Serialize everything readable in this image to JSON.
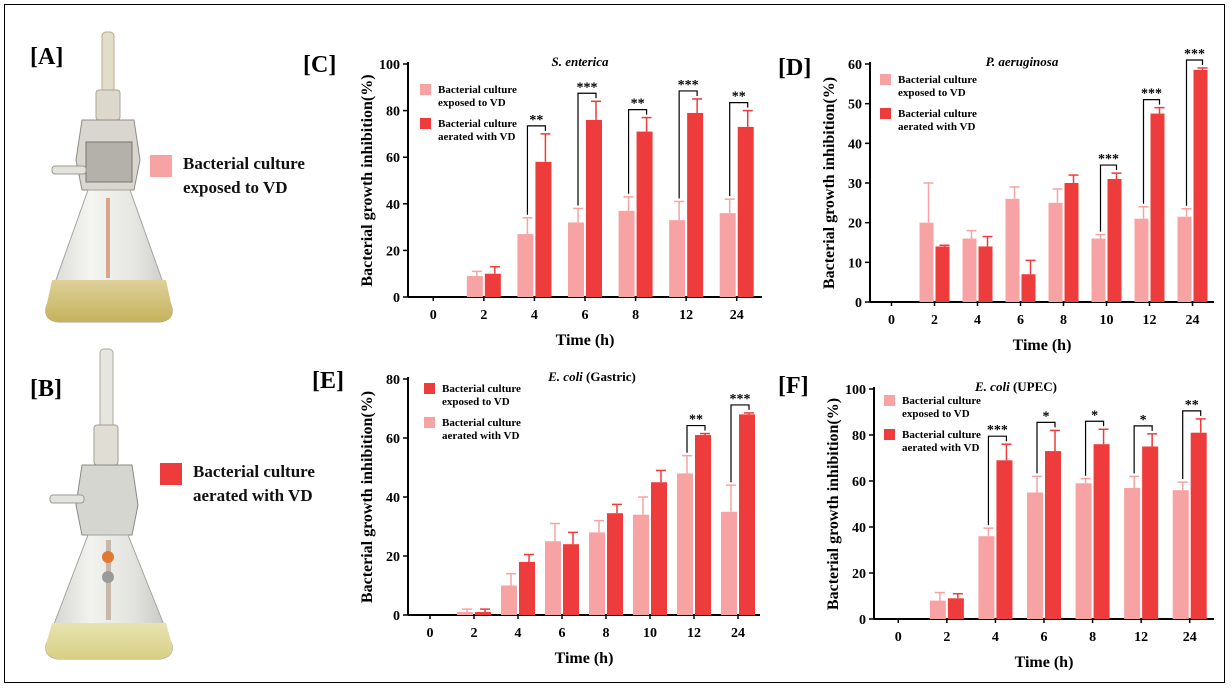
{
  "colors": {
    "light": "#f7a3a3",
    "dark": "#ee3b3b",
    "frame": "#000000"
  },
  "panel_labels": {
    "a": "[A]",
    "b": "[B]",
    "c": "[C]",
    "d": "[D]",
    "e": "[E]",
    "f": "[F]"
  },
  "photo_legend": {
    "a_text": "Bacterial culture\nexposed to VD",
    "b_text": "Bacterial culture\naerated with VD"
  },
  "chart_data": [
    {
      "type": "bar",
      "panel": "C",
      "title": "S. enterica",
      "xlabel": "Time (h)",
      "ylabel": "Bacterial growth  inhibition(%)",
      "ylim": [
        0,
        100
      ],
      "yticks": [
        0,
        20,
        40,
        60,
        80,
        100
      ],
      "categories": [
        "0",
        "2",
        "4",
        "6",
        "8",
        "12",
        "24"
      ],
      "legend_position": "top-left",
      "series": [
        {
          "name": "Bacterial culture exposed to VD",
          "color_key": "light",
          "values": [
            0,
            9,
            27,
            32,
            37,
            33,
            36
          ],
          "errors": [
            0,
            2,
            7,
            6,
            6,
            8,
            6
          ]
        },
        {
          "name": "Bacterial culture aerated with VD",
          "color_key": "dark",
          "values": [
            0,
            10,
            58,
            76,
            71,
            79,
            73
          ],
          "errors": [
            0,
            3,
            12,
            8,
            6,
            6,
            7
          ]
        }
      ],
      "significance": [
        "",
        "",
        "**",
        "***",
        "**",
        "***",
        "**"
      ]
    },
    {
      "type": "bar",
      "panel": "D",
      "title": "P. aeruginosa",
      "xlabel": "Time (h)",
      "ylabel": "Bacterial growth  inhibition(%)",
      "ylim": [
        0,
        60
      ],
      "yticks": [
        0,
        10,
        20,
        30,
        40,
        50,
        60
      ],
      "categories": [
        "0",
        "2",
        "4",
        "6",
        "8",
        "10",
        "12",
        "24"
      ],
      "legend_position": "top-left",
      "series": [
        {
          "name": "Bacterial culture exposed to VD",
          "color_key": "light",
          "values": [
            0,
            20,
            16,
            26,
            25,
            16,
            21,
            21.5
          ],
          "errors": [
            0,
            10,
            2,
            3,
            3.5,
            1,
            3,
            2
          ]
        },
        {
          "name": "Bacterial culture aerated with VD",
          "color_key": "dark",
          "values": [
            0,
            14,
            14,
            7,
            30,
            31,
            47.5,
            58.5
          ],
          "errors": [
            0,
            0.3,
            2.5,
            3.5,
            2,
            1.5,
            1.5,
            0.5
          ]
        }
      ],
      "significance": [
        "",
        "",
        "",
        "",
        "",
        "***",
        "***",
        "***"
      ]
    },
    {
      "type": "bar",
      "panel": "E",
      "title": "E. coli (Gastric)",
      "xlabel": "Time (h)",
      "ylabel": "Bacterial growth  inhibition(%)",
      "ylim": [
        0,
        80
      ],
      "yticks": [
        0,
        20,
        40,
        60,
        80
      ],
      "categories": [
        "0",
        "2",
        "4",
        "6",
        "8",
        "10",
        "12",
        "24"
      ],
      "legend_position": "top-left",
      "legend_order": [
        "dark",
        "light"
      ],
      "series": [
        {
          "name": "Bacterial culture aerated with VD",
          "color_key": "light",
          "values": [
            0,
            1,
            10,
            25,
            28,
            34,
            48,
            35
          ],
          "errors": [
            0,
            1,
            4,
            6,
            4,
            6,
            6,
            9
          ]
        },
        {
          "name": "Bacterial culture exposed to VD",
          "color_key": "dark",
          "values": [
            0,
            1,
            18,
            24,
            34.5,
            45,
            61,
            68
          ],
          "errors": [
            0,
            1,
            2.5,
            4,
            3,
            4,
            0.5,
            0.5
          ]
        }
      ],
      "significance": [
        "",
        "",
        "",
        "",
        "",
        "",
        "**",
        "***"
      ]
    },
    {
      "type": "bar",
      "panel": "F",
      "title": "E. coli (UPEC)",
      "xlabel": "Time (h)",
      "ylabel": "Bacterial growth  inhibition(%)",
      "ylim": [
        0,
        100
      ],
      "yticks": [
        0,
        20,
        40,
        60,
        80,
        100
      ],
      "categories": [
        "0",
        "2",
        "4",
        "6",
        "8",
        "12",
        "24"
      ],
      "legend_position": "top-left",
      "series": [
        {
          "name": "Bacterial culture exposed to VD",
          "color_key": "light",
          "values": [
            0,
            8,
            36,
            55,
            59,
            57,
            56
          ],
          "errors": [
            0,
            3.5,
            3.5,
            7,
            2,
            5,
            3.5
          ]
        },
        {
          "name": "Bacterial culture aerated with VD",
          "color_key": "dark",
          "values": [
            0,
            9,
            69,
            73,
            76,
            75,
            81
          ],
          "errors": [
            0,
            2,
            7,
            9,
            6.5,
            5.5,
            6
          ]
        }
      ],
      "significance": [
        "",
        "",
        "***",
        "*",
        "*",
        "*",
        "**"
      ]
    }
  ]
}
